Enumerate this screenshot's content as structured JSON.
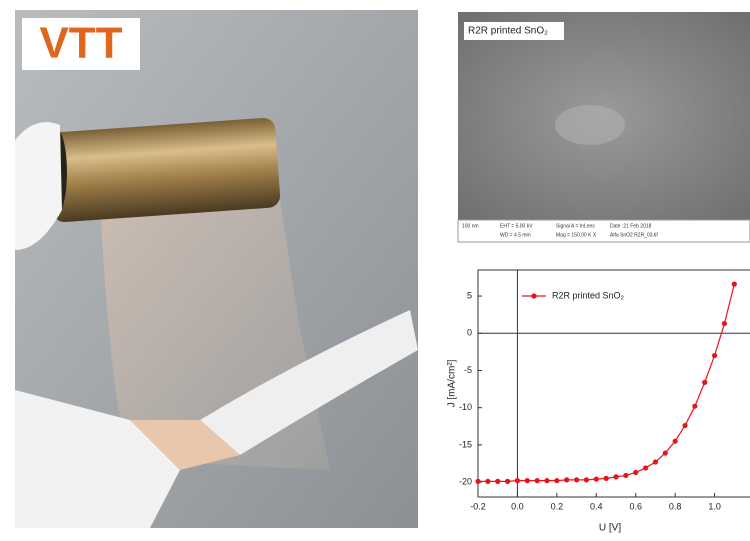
{
  "logo": "VTT",
  "sem": {
    "label": "R2R printed SnO₂",
    "footer": [
      "100 nm",
      "EHT = 5.00 kV",
      "WD = 4.5 mm",
      "Signal A = InLens",
      "Mag = 150.00 K X",
      "Date :21 Feb 2018",
      "Alfa SnO2 R2R_03.tif"
    ]
  },
  "chart_data": {
    "type": "line",
    "xlabel": "U [V]",
    "ylabel": "J [mA/cm²]",
    "x": [
      -0.2,
      -0.15,
      -0.1,
      -0.05,
      0,
      0.05,
      0.1,
      0.15,
      0.2,
      0.25,
      0.3,
      0.35,
      0.4,
      0.45,
      0.5,
      0.55,
      0.6,
      0.65,
      0.7,
      0.75,
      0.8,
      0.85,
      0.9,
      0.95,
      1.0,
      1.05,
      1.1
    ],
    "series": [
      {
        "name": "R2R printed SnO₂",
        "color": "#e8141c",
        "values": [
          -19.9,
          -19.9,
          -19.9,
          -19.9,
          -19.8,
          -19.8,
          -19.8,
          -19.8,
          -19.8,
          -19.7,
          -19.7,
          -19.7,
          -19.6,
          -19.5,
          -19.3,
          -19.1,
          -18.7,
          -18.1,
          -17.3,
          -16.1,
          -14.5,
          -12.4,
          -9.8,
          -6.6,
          -3,
          1.3,
          6.6
        ]
      }
    ],
    "xlim": [
      -0.2,
      1.2
    ],
    "ylim": [
      -22,
      8.5
    ],
    "xticks": [
      -0.2,
      {
        "value": 0,
        "label": "0.0"
      },
      0.2,
      0.4,
      0.6,
      0.8,
      {
        "value": 1,
        "label": "1.0"
      }
    ],
    "yticks": [
      5,
      0,
      -5,
      -10,
      -15,
      -20
    ],
    "zero_lines": true,
    "legend": "upper left"
  }
}
